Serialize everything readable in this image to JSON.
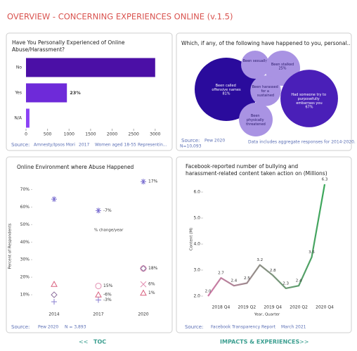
{
  "header": {
    "title": "OVERVIEW - CONCERNING EXPERIENCES ONLINE (v.1.5)"
  },
  "chart_data": [
    {
      "type": "bar",
      "title": "Have You Personally Experienced of Online Abuse/Harassment?",
      "categories": [
        "No",
        "Yes",
        "N/A"
      ],
      "values": [
        3000,
        950,
        80
      ],
      "colors": [
        "#4b0fa6",
        "#6e2ad9",
        "#8b42f5"
      ],
      "annotation": "23%",
      "xlim": [
        0,
        3150
      ],
      "xticks": [
        0,
        500,
        1000,
        1500,
        2000,
        2500,
        3000
      ],
      "source": {
        "label": "Source:",
        "items": [
          "Amnesty/Ipsos Mori",
          "2017",
          "Women aged 18-55",
          "Representin..."
        ]
      }
    },
    {
      "type": "bubble",
      "title": "Which, if any, of the following have happened to you, personal..",
      "categories": [
        "Been called offensive names",
        "Been sexually",
        "Been stalked",
        "Been harassed for a sustained",
        "Had someone try to purposefully embarrass you",
        "Been physically threatened"
      ],
      "values": [
        81,
        16,
        25,
        19,
        67,
        23
      ],
      "value_labels": [
        "81%",
        null,
        "25%",
        null,
        "67%",
        null
      ],
      "colors": [
        "#2a0b9c",
        "#a993e3",
        "#a993e3",
        "#a993e3",
        "#4a1fb8",
        "#a993e3"
      ],
      "source": {
        "label": "Source:",
        "items": [
          "Pew 2020",
          "N=10,093",
          "Data includes aggregate responses for 2014-2020."
        ]
      }
    },
    {
      "type": "scatter",
      "title": "Online Environment where Abuse Happened",
      "categories": [
        "2014",
        "2017",
        "2020"
      ],
      "y_label": "Percent of Respondents",
      "annotation": "% change/year",
      "ylim": [
        0,
        77
      ],
      "yticks": [
        {
          "value": 10,
          "label": "10%"
        },
        {
          "value": 20,
          "label": "20%"
        },
        {
          "value": 30,
          "label": "30%"
        },
        {
          "value": 40,
          "label": "40%"
        },
        {
          "value": 50,
          "label": "50%"
        },
        {
          "value": 60,
          "label": "60%"
        },
        {
          "value": 70,
          "label": "70%"
        }
      ],
      "series": [
        {
          "marker": "asterisk",
          "color": "#7b6fd0",
          "values": [
            64.5,
            58,
            74.5
          ],
          "change_labels": [
            null,
            "-7%",
            "17%"
          ]
        },
        {
          "marker": "circle",
          "color": "#e38fb2",
          "values": [
            null,
            15,
            25
          ],
          "change_labels": [
            null,
            "15%",
            null
          ]
        },
        {
          "marker": "triangle",
          "color": "#d9607f",
          "values": [
            16,
            10,
            11
          ],
          "change_labels": [
            null,
            "-6%",
            "1%"
          ]
        },
        {
          "marker": "x",
          "color": "#e38fb2",
          "values": [
            null,
            null,
            16
          ],
          "change_labels": [
            null,
            null,
            "6%"
          ]
        },
        {
          "marker": "diamond",
          "color": "#8a6a9a",
          "values": [
            10,
            null,
            25
          ],
          "change_labels": [
            null,
            null,
            "18%"
          ]
        },
        {
          "marker": "plus",
          "color": "#8a7fd0",
          "values": [
            6,
            7,
            null
          ],
          "change_labels": [
            null,
            "-3%",
            null
          ]
        }
      ],
      "source": {
        "label": "Source:",
        "items": [
          "Pew 2020",
          "N = 3,893"
        ]
      }
    },
    {
      "type": "line",
      "title": "Facebook-reported number of bullying and harassment-related content taken action on (Millions)",
      "categories": [
        null,
        "2018 Q4",
        null,
        "2019 Q2",
        null,
        "2019 Q4",
        null,
        "2020 Q2",
        null,
        "2020 Q4"
      ],
      "values": [
        2.0,
        2.7,
        2.4,
        2.5,
        3.2,
        2.8,
        2.3,
        2.4,
        3.5,
        6.3
      ],
      "value_labels": [
        "2.0",
        "2.7",
        "2.4",
        "2.5",
        "3.2",
        "2.8",
        "2.3",
        "2.4",
        "3.5",
        "6.3"
      ],
      "colors": [
        "#d07aa8",
        "#3aa85a"
      ],
      "x_label": "Year, Quarter",
      "y_label": "Content (M)",
      "ylim": [
        1.8,
        6.45
      ],
      "yticks": [
        {
          "value": 2,
          "label": "2.0"
        },
        {
          "value": 3,
          "label": "3.0"
        },
        {
          "value": 4,
          "label": "4.0"
        },
        {
          "value": 5,
          "label": "5.0"
        },
        {
          "value": 6,
          "label": "6.0"
        }
      ],
      "source": {
        "label": "Source:",
        "items": [
          "Facebook Transparency Report",
          "March 2021"
        ]
      }
    }
  ],
  "footer": {
    "prev": "<<",
    "prev_label": "TOC",
    "next_label": "IMPACTS & EXPERIENCES",
    "next": ">>"
  }
}
